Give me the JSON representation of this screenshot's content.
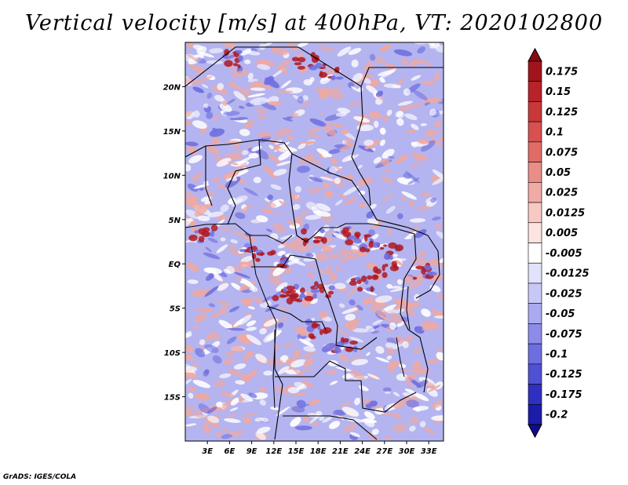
{
  "title": "Vertical velocity [m/s] at 400hPa, VT: 2020102800",
  "credit": "GrADS: IGES/COLA",
  "map": {
    "lon_range": [
      0,
      35
    ],
    "lat_range": [
      -20,
      25
    ],
    "lat_ticks": [
      {
        "value": 20,
        "label": "20N"
      },
      {
        "value": 15,
        "label": "15N"
      },
      {
        "value": 10,
        "label": "10N"
      },
      {
        "value": 5,
        "label": "5N"
      },
      {
        "value": 0,
        "label": "EQ"
      },
      {
        "value": -5,
        "label": "5S"
      },
      {
        "value": -10,
        "label": "10S"
      },
      {
        "value": -15,
        "label": "15S"
      }
    ],
    "lon_ticks": [
      {
        "value": 3,
        "label": "3E"
      },
      {
        "value": 6,
        "label": "6E"
      },
      {
        "value": 9,
        "label": "9E"
      },
      {
        "value": 12,
        "label": "12E"
      },
      {
        "value": 15,
        "label": "15E"
      },
      {
        "value": 18,
        "label": "18E"
      },
      {
        "value": 21,
        "label": "21E"
      },
      {
        "value": 24,
        "label": "24E"
      },
      {
        "value": 27,
        "label": "27E"
      },
      {
        "value": 30,
        "label": "30E"
      },
      {
        "value": 33,
        "label": "33E"
      }
    ]
  },
  "colorbar": {
    "levels": [
      {
        "label": "0.175",
        "color": "#a0141c"
      },
      {
        "label": "0.15",
        "color": "#b8222a"
      },
      {
        "label": "0.125",
        "color": "#c83838"
      },
      {
        "label": "0.1",
        "color": "#d85050"
      },
      {
        "label": "0.075",
        "color": "#e06c68"
      },
      {
        "label": "0.05",
        "color": "#ea8c88"
      },
      {
        "label": "0.025",
        "color": "#f2aaa6"
      },
      {
        "label": "0.0125",
        "color": "#f8c8c4"
      },
      {
        "label": "0.005",
        "color": "#fce4e2"
      },
      {
        "label": "-0.005",
        "color": "#ffffff"
      },
      {
        "label": "-0.0125",
        "color": "#e2e2fc"
      },
      {
        "label": "-0.025",
        "color": "#c8c8f8"
      },
      {
        "label": "-0.05",
        "color": "#aaaaf0"
      },
      {
        "label": "-0.075",
        "color": "#8c8ce8"
      },
      {
        "label": "-0.1",
        "color": "#6e6ee0"
      },
      {
        "label": "-0.125",
        "color": "#5050d4"
      },
      {
        "label": "-0.175",
        "color": "#3030c0"
      },
      {
        "label": "-0.2",
        "color": "#1c1ca8"
      }
    ],
    "top_arrow_color": "#8a0a14",
    "bottom_arrow_color": "#100c90"
  },
  "field": {
    "background_color": "#b4b4f0",
    "positive_color": "#f0a8a0",
    "strong_positive_color": "#b01820",
    "negative_color": "#7070e0",
    "white_color": "#ffffff"
  }
}
